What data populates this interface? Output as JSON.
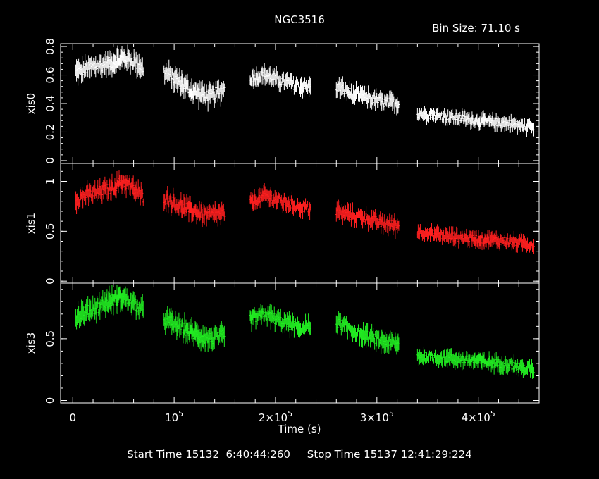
{
  "chart_data": {
    "type": "scatter",
    "title": "NGC3516",
    "bin_size_label": "Bin Size: 71.10 s",
    "xlabel": "Time (s)",
    "xlim": [
      -12000,
      460000
    ],
    "x_ticks": [
      {
        "value": 0,
        "label": "0",
        "exp": ""
      },
      {
        "value": 100000,
        "label": "10",
        "exp": "5"
      },
      {
        "value": 200000,
        "label": "2×10",
        "exp": "5"
      },
      {
        "value": 300000,
        "label": "3×10",
        "exp": "5"
      },
      {
        "value": 400000,
        "label": "4×10",
        "exp": "5"
      }
    ],
    "background": "#000000",
    "axis_color": "#ffffff",
    "panels": [
      {
        "name": "xis0",
        "ylabel": "xis0",
        "color": "#ffffff",
        "ylim": [
          -0.02,
          0.82
        ],
        "y_ticks": [
          "0",
          "0.2",
          "0.4",
          "0.6",
          "0.8"
        ],
        "y_tick_values": [
          0,
          0.2,
          0.4,
          0.6,
          0.8
        ],
        "segments": [
          {
            "x0": 3000,
            "x1": 70000,
            "x": [
              3000,
              20000,
              35000,
              50000,
              60000,
              70000
            ],
            "y": [
              0.62,
              0.66,
              0.68,
              0.72,
              0.7,
              0.64
            ],
            "err": 0.06
          },
          {
            "x0": 90000,
            "x1": 150000,
            "x": [
              90000,
              105000,
              120000,
              135000,
              150000
            ],
            "y": [
              0.62,
              0.55,
              0.48,
              0.45,
              0.5
            ],
            "err": 0.06
          },
          {
            "x0": 175000,
            "x1": 235000,
            "x": [
              175000,
              190000,
              205000,
              220000,
              235000
            ],
            "y": [
              0.58,
              0.6,
              0.56,
              0.53,
              0.51
            ],
            "err": 0.05
          },
          {
            "x0": 260000,
            "x1": 322000,
            "x": [
              260000,
              275000,
              290000,
              305000,
              322000
            ],
            "y": [
              0.52,
              0.47,
              0.44,
              0.41,
              0.4
            ],
            "err": 0.05
          },
          {
            "x0": 340000,
            "x1": 455000,
            "x": [
              340000,
              370000,
              400000,
              430000,
              455000
            ],
            "y": [
              0.33,
              0.31,
              0.28,
              0.26,
              0.23
            ],
            "err": 0.04
          }
        ]
      },
      {
        "name": "xis1",
        "ylabel": "xis1",
        "color": "#ff2020",
        "ylim": [
          -0.02,
          1.18
        ],
        "y_ticks": [
          "0",
          "0.5",
          "1"
        ],
        "y_tick_values": [
          0,
          0.5,
          1
        ],
        "segments": [
          {
            "x0": 3000,
            "x1": 70000,
            "x": [
              3000,
              20000,
              35000,
              50000,
              60000,
              70000
            ],
            "y": [
              0.82,
              0.88,
              0.92,
              1.0,
              0.92,
              0.84
            ],
            "err": 0.08
          },
          {
            "x0": 90000,
            "x1": 150000,
            "x": [
              90000,
              105000,
              120000,
              135000,
              150000
            ],
            "y": [
              0.84,
              0.76,
              0.7,
              0.66,
              0.68
            ],
            "err": 0.08
          },
          {
            "x0": 175000,
            "x1": 235000,
            "x": [
              175000,
              190000,
              205000,
              220000,
              235000
            ],
            "y": [
              0.78,
              0.86,
              0.8,
              0.76,
              0.72
            ],
            "err": 0.07
          },
          {
            "x0": 260000,
            "x1": 322000,
            "x": [
              260000,
              275000,
              290000,
              305000,
              322000
            ],
            "y": [
              0.7,
              0.66,
              0.63,
              0.58,
              0.55
            ],
            "err": 0.07
          },
          {
            "x0": 340000,
            "x1": 455000,
            "x": [
              340000,
              370000,
              400000,
              430000,
              455000
            ],
            "y": [
              0.5,
              0.45,
              0.42,
              0.4,
              0.37
            ],
            "err": 0.06
          }
        ]
      },
      {
        "name": "xis3",
        "ylabel": "xis3",
        "color": "#22ee22",
        "ylim": [
          -0.02,
          0.95
        ],
        "y_ticks": [
          "0",
          "0.5"
        ],
        "y_tick_values": [
          0,
          0.5
        ],
        "segments": [
          {
            "x0": 3000,
            "x1": 70000,
            "x": [
              3000,
              20000,
              35000,
              50000,
              60000,
              70000
            ],
            "y": [
              0.68,
              0.74,
              0.8,
              0.84,
              0.78,
              0.72
            ],
            "err": 0.07
          },
          {
            "x0": 90000,
            "x1": 150000,
            "x": [
              90000,
              105000,
              120000,
              135000,
              150000
            ],
            "y": [
              0.66,
              0.6,
              0.54,
              0.5,
              0.52
            ],
            "err": 0.07
          },
          {
            "x0": 175000,
            "x1": 235000,
            "x": [
              175000,
              190000,
              205000,
              220000,
              235000
            ],
            "y": [
              0.66,
              0.7,
              0.64,
              0.6,
              0.59
            ],
            "err": 0.06
          },
          {
            "x0": 260000,
            "x1": 322000,
            "x": [
              260000,
              275000,
              290000,
              305000,
              322000
            ],
            "y": [
              0.64,
              0.57,
              0.52,
              0.48,
              0.45
            ],
            "err": 0.06
          },
          {
            "x0": 340000,
            "x1": 455000,
            "x": [
              340000,
              370000,
              400000,
              430000,
              455000
            ],
            "y": [
              0.36,
              0.34,
              0.32,
              0.29,
              0.25
            ],
            "err": 0.05
          }
        ]
      }
    ]
  },
  "footer": {
    "start_label": "Start Time",
    "start_value": "15132  6:40:44:260",
    "stop_label": "Stop Time",
    "stop_value": "15137 12:41:29:224"
  }
}
